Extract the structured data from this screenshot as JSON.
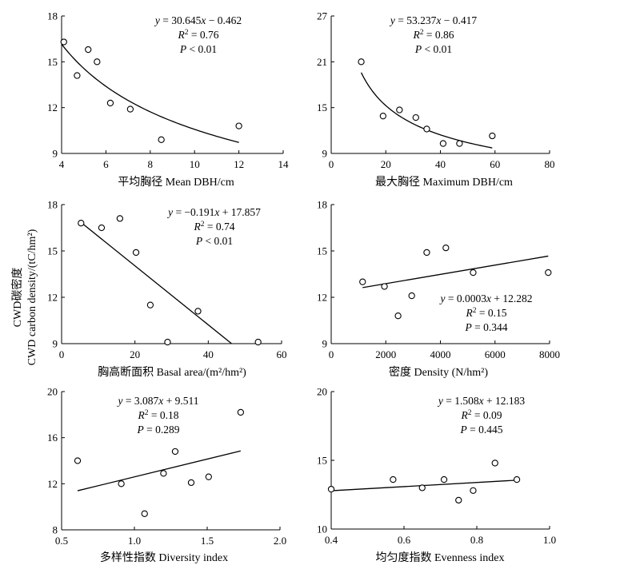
{
  "y_axis_label": {
    "line1": "CWD碳密度",
    "line2": "CWD carbon density/(tC/hm²)"
  },
  "chart_data": [
    {
      "type": "scatter",
      "xlabel": "平均胸径 Mean DBH/cm",
      "xlim": [
        4,
        14
      ],
      "xticks": [
        4,
        6,
        8,
        10,
        12,
        14
      ],
      "ylim": [
        9,
        18
      ],
      "yticks": [
        9,
        12,
        15,
        18
      ],
      "x": [
        4.1,
        4.7,
        5.2,
        5.6,
        6.2,
        7.1,
        8.5,
        12.0
      ],
      "y": [
        16.3,
        14.1,
        15.8,
        15.0,
        12.3,
        11.9,
        9.9,
        10.8
      ],
      "fit": {
        "kind": "reciprocal",
        "a": 30.645,
        "b": -0.462,
        "x_range": [
          4.0,
          12.0
        ]
      },
      "annotation": {
        "eq_a": "y",
        "eq_b": " = 30.645",
        "eq_c": "x",
        "eq_d": " − 0.462",
        "r2_value": " = 0.76",
        "p_value": " < 0.01"
      }
    },
    {
      "type": "scatter",
      "xlabel": "最大胸径 Maximum DBH/cm",
      "xlim": [
        0,
        80
      ],
      "xticks": [
        0,
        20,
        40,
        60,
        80
      ],
      "ylim": [
        9,
        27
      ],
      "yticks": [
        9,
        15,
        21,
        27
      ],
      "x": [
        11,
        19,
        25,
        31,
        35,
        41,
        47,
        59
      ],
      "y": [
        21.0,
        13.9,
        14.7,
        13.7,
        12.2,
        10.3,
        10.3,
        11.3
      ],
      "fit": {
        "kind": "reciprocal",
        "a": 53.237,
        "b": -0.417,
        "x_range": [
          11.0,
          59.0
        ]
      },
      "annotation": {
        "eq_a": "y",
        "eq_b": " = 53.237",
        "eq_c": "x",
        "eq_d": " − 0.417",
        "r2_value": " = 0.86",
        "p_value": " < 0.01"
      }
    },
    {
      "type": "scatter",
      "xlabel": "胸高断面积 Basal area/(m²/hm²)",
      "xlim": [
        0,
        60
      ],
      "xticks": [
        0,
        20,
        40,
        60
      ],
      "ylim": [
        9,
        18
      ],
      "yticks": [
        9,
        12,
        15,
        18
      ],
      "x": [
        5.3,
        10.9,
        15.9,
        20.3,
        24.2,
        37.2,
        28.9,
        53.6
      ],
      "y": [
        16.8,
        16.5,
        17.1,
        14.9,
        11.5,
        11.1,
        9.1,
        9.1
      ],
      "fit": {
        "kind": "linear",
        "slope": -0.191,
        "intercept": 17.857,
        "x_range": [
          5.0,
          46.3
        ]
      },
      "annotation": {
        "eq_a": "y",
        "eq_b": " = −0.191",
        "eq_c": "x",
        "eq_d": " + 17.857",
        "r2_value": " = 0.74",
        "p_value": " < 0.01"
      }
    },
    {
      "type": "scatter",
      "xlabel": "密度 Density (N/hm²)",
      "xlim": [
        0,
        8000
      ],
      "xticks": [
        0,
        2000,
        4000,
        6000,
        8000
      ],
      "ylim": [
        9,
        18
      ],
      "yticks": [
        9,
        12,
        15,
        18
      ],
      "x": [
        1150,
        1950,
        2450,
        2950,
        3500,
        4200,
        5200,
        7950
      ],
      "y": [
        13.0,
        12.7,
        10.8,
        12.1,
        14.9,
        15.2,
        13.6,
        13.6
      ],
      "fit": {
        "kind": "linear",
        "slope": 0.0003,
        "intercept": 12.282,
        "x_range": [
          1150,
          7950
        ]
      },
      "annotation": {
        "eq_a": "y",
        "eq_b": " = 0.0003",
        "eq_c": "x",
        "eq_d": " + 12.282",
        "r2_value": " = 0.15",
        "p_value": " = 0.344"
      }
    },
    {
      "type": "scatter",
      "xlabel": "多样性指数 Diversity index",
      "xlim": [
        0.5,
        2.0
      ],
      "xticks": [
        0.5,
        1.0,
        1.5,
        2.0
      ],
      "xtick_labels": [
        "0.5",
        "1.0",
        "1.5",
        "2.0"
      ],
      "ylim": [
        8,
        20
      ],
      "yticks": [
        8,
        12,
        16,
        20
      ],
      "x": [
        0.61,
        0.91,
        1.07,
        1.2,
        1.28,
        1.39,
        1.51,
        1.73
      ],
      "y": [
        14.0,
        12.0,
        9.4,
        12.9,
        14.8,
        12.1,
        12.6,
        18.2
      ],
      "fit": {
        "kind": "linear",
        "slope": 3.087,
        "intercept": 9.511,
        "x_range": [
          0.61,
          1.73
        ]
      },
      "annotation": {
        "eq_a": "y",
        "eq_b": " = 3.087",
        "eq_c": "x",
        "eq_d": " + 9.511",
        "r2_value": " = 0.18",
        "p_value": " = 0.289"
      }
    },
    {
      "type": "scatter",
      "xlabel": "均匀度指数 Evenness index",
      "xlim": [
        0.4,
        1.0
      ],
      "xticks": [
        0.4,
        0.6,
        0.8,
        1.0
      ],
      "xtick_labels": [
        "0.4",
        "0.6",
        "0.8",
        "1.0"
      ],
      "ylim": [
        10,
        20
      ],
      "yticks": [
        10,
        15,
        20
      ],
      "x": [
        0.4,
        0.57,
        0.65,
        0.71,
        0.75,
        0.79,
        0.85,
        0.91
      ],
      "y": [
        12.9,
        13.6,
        13.0,
        13.6,
        12.1,
        12.8,
        14.8,
        13.6
      ],
      "fit": {
        "kind": "linear",
        "slope": 1.508,
        "intercept": 12.183,
        "x_range": [
          0.4,
          0.91
        ]
      },
      "annotation": {
        "eq_a": "y",
        "eq_b": " = 1.508",
        "eq_c": "x",
        "eq_d": " + 12.183",
        "r2_value": " = 0.09",
        "p_value": " = 0.445"
      }
    }
  ]
}
